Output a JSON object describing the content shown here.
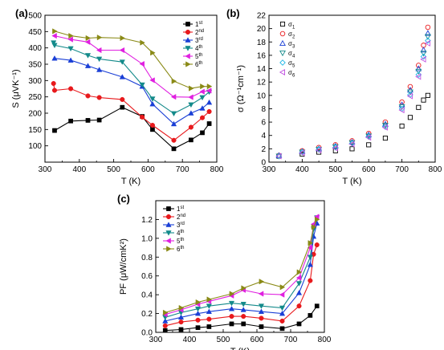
{
  "colors": {
    "s1": "#000000",
    "s2": "#e8191c",
    "s3": "#1a3fd6",
    "s4": "#138a8a",
    "s5": "#e020e0",
    "s6": "#8a8a16"
  },
  "chart_data": [
    {
      "id": "a",
      "type": "line",
      "panel_label": "(a)",
      "xlabel": "T (K)",
      "ylabel": "S (μVK⁻¹)",
      "xlim": [
        300,
        800
      ],
      "ylim": [
        50,
        500
      ],
      "xticks": [
        300,
        400,
        500,
        600,
        700,
        800
      ],
      "yticks": [
        100,
        150,
        200,
        250,
        300,
        350,
        400,
        450,
        500
      ],
      "legend_position": "top-right",
      "series": [
        {
          "name": "1st",
          "label_main": "1",
          "label_sup": "st",
          "marker": "square",
          "color": "#000000",
          "x": [
            328,
            375,
            425,
            458,
            525,
            583,
            613,
            675,
            725,
            758,
            778
          ],
          "y": [
            147,
            176,
            178,
            179,
            218,
            190,
            150,
            91,
            118,
            140,
            168
          ]
        },
        {
          "name": "2nd",
          "label_main": "2",
          "label_sup": "nd",
          "marker": "circle",
          "color": "#e8191c",
          "x": [
            325,
            328,
            375,
            425,
            458,
            525,
            583,
            613,
            675,
            725,
            758,
            778
          ],
          "y": [
            291,
            270,
            275,
            253,
            248,
            242,
            188,
            163,
            117,
            157,
            186,
            205
          ]
        },
        {
          "name": "3rd",
          "label_main": "3",
          "label_sup": "rd",
          "marker": "triangle-up",
          "color": "#1a3fd6",
          "x": [
            328,
            375,
            425,
            458,
            525,
            583,
            613,
            675,
            725,
            758,
            778
          ],
          "y": [
            368,
            362,
            345,
            333,
            311,
            282,
            228,
            167,
            200,
            215,
            233
          ]
        },
        {
          "name": "4th",
          "label_main": "4",
          "label_sup": "th",
          "marker": "triangle-down",
          "color": "#138a8a",
          "x": [
            325,
            328,
            375,
            425,
            458,
            525,
            583,
            613,
            675,
            725,
            758,
            778
          ],
          "y": [
            416,
            408,
            398,
            377,
            366,
            357,
            287,
            244,
            199,
            226,
            248,
            265
          ]
        },
        {
          "name": "5th",
          "label_main": "5",
          "label_sup": "th",
          "marker": "triangle-left",
          "color": "#e020e0",
          "x": [
            328,
            375,
            425,
            458,
            525,
            583,
            613,
            675,
            725,
            758,
            778
          ],
          "y": [
            437,
            426,
            418,
            393,
            393,
            351,
            301,
            250,
            249,
            266,
            269
          ]
        },
        {
          "name": "6th",
          "label_main": "6",
          "label_sup": "th",
          "marker": "triangle-right",
          "color": "#8a8a16",
          "x": [
            328,
            375,
            425,
            458,
            525,
            583,
            613,
            675,
            725,
            758,
            778
          ],
          "y": [
            451,
            437,
            430,
            432,
            430,
            416,
            385,
            298,
            276,
            282,
            282
          ]
        }
      ]
    },
    {
      "id": "b",
      "type": "scatter",
      "panel_label": "(b)",
      "xlabel": "T (K)",
      "ylabel": "σ (Ω⁻¹cm⁻¹)",
      "xlim": [
        300,
        800
      ],
      "ylim": [
        0,
        22
      ],
      "xticks": [
        300,
        400,
        500,
        600,
        700,
        800
      ],
      "yticks": [
        0,
        2,
        4,
        6,
        8,
        10,
        12,
        14,
        16,
        18,
        20,
        22
      ],
      "legend_position": "top-left",
      "series": [
        {
          "name": "σ1",
          "label_main": "σ",
          "label_sub": "1",
          "marker": "open-square",
          "color": "#000000",
          "x": [
            330,
            400,
            450,
            500,
            550,
            600,
            650,
            700,
            725,
            750,
            765,
            778
          ],
          "y": [
            0.9,
            1.2,
            1.5,
            1.7,
            2.0,
            2.6,
            3.6,
            5.4,
            6.7,
            8.2,
            9.3,
            10.0
          ]
        },
        {
          "name": "σ2",
          "label_main": "σ",
          "label_sub": "2",
          "marker": "open-circle",
          "color": "#e8191c",
          "x": [
            330,
            400,
            450,
            500,
            550,
            600,
            650,
            700,
            725,
            750,
            765,
            778
          ],
          "y": [
            1.0,
            1.7,
            2.2,
            2.6,
            3.2,
            4.3,
            6.0,
            9.0,
            11.3,
            14.5,
            17.5,
            20.2
          ]
        },
        {
          "name": "σ3",
          "label_main": "σ",
          "label_sub": "3",
          "marker": "open-triangle-up",
          "color": "#1a3fd6",
          "x": [
            330,
            400,
            450,
            500,
            550,
            600,
            650,
            700,
            725,
            750,
            765,
            778
          ],
          "y": [
            1.0,
            1.6,
            2.0,
            2.4,
            3.0,
            4.1,
            5.7,
            8.6,
            10.8,
            14.0,
            16.8,
            19.3
          ]
        },
        {
          "name": "σ4",
          "label_main": "σ",
          "label_sub": "4",
          "marker": "open-triangle-down",
          "color": "#138a8a",
          "x": [
            330,
            400,
            450,
            500,
            550,
            600,
            650,
            700,
            725,
            750,
            765,
            778
          ],
          "y": [
            0.9,
            1.5,
            1.9,
            2.3,
            2.9,
            3.9,
            5.5,
            8.3,
            10.5,
            13.6,
            16.3,
            18.8
          ]
        },
        {
          "name": "σ5",
          "label_main": "σ",
          "label_sub": "5",
          "marker": "open-diamond",
          "color": "#22b8e8",
          "x": [
            330,
            400,
            450,
            500,
            550,
            600,
            650,
            700,
            725,
            750,
            765,
            778
          ],
          "y": [
            0.9,
            1.5,
            1.9,
            2.2,
            2.8,
            3.8,
            5.3,
            8.0,
            10.1,
            13.1,
            15.8,
            18.2
          ]
        },
        {
          "name": "σ6",
          "label_main": "σ",
          "label_sub": "6",
          "marker": "open-triangle-left",
          "color": "#c050e0",
          "x": [
            330,
            400,
            450,
            500,
            550,
            600,
            650,
            700,
            725,
            750,
            765,
            778
          ],
          "y": [
            0.9,
            1.4,
            1.8,
            2.1,
            2.7,
            3.7,
            5.2,
            7.8,
            9.9,
            12.8,
            15.4,
            17.8
          ]
        }
      ]
    },
    {
      "id": "c",
      "type": "line",
      "panel_label": "(c)",
      "xlabel": "T (K)",
      "ylabel": "PF (μW/cmK²)",
      "xlim": [
        300,
        800
      ],
      "ylim": [
        0.0,
        1.4
      ],
      "xticks": [
        300,
        400,
        500,
        600,
        700,
        800
      ],
      "yticks": [
        0.0,
        0.2,
        0.4,
        0.6,
        0.8,
        1.0,
        1.2
      ],
      "legend_position": "top-left",
      "series": [
        {
          "name": "1st",
          "label_main": "1",
          "label_sup": "st",
          "marker": "square",
          "color": "#000000",
          "x": [
            328,
            375,
            425,
            458,
            525,
            560,
            613,
            675,
            725,
            758,
            778
          ],
          "y": [
            0.02,
            0.03,
            0.05,
            0.06,
            0.09,
            0.09,
            0.06,
            0.04,
            0.09,
            0.18,
            0.28
          ]
        },
        {
          "name": "2nd",
          "label_main": "2",
          "label_sup": "nd",
          "marker": "circle",
          "color": "#e8191c",
          "x": [
            328,
            375,
            425,
            458,
            525,
            560,
            613,
            675,
            725,
            758,
            768,
            778
          ],
          "y": [
            0.07,
            0.11,
            0.13,
            0.14,
            0.17,
            0.17,
            0.15,
            0.12,
            0.28,
            0.55,
            0.83,
            0.93
          ]
        },
        {
          "name": "3rd",
          "label_main": "3",
          "label_sup": "rd",
          "marker": "triangle-up",
          "color": "#1a3fd6",
          "x": [
            328,
            375,
            425,
            458,
            525,
            560,
            613,
            675,
            725,
            758,
            768,
            778
          ],
          "y": [
            0.12,
            0.16,
            0.2,
            0.22,
            0.25,
            0.24,
            0.22,
            0.2,
            0.42,
            0.72,
            1.02,
            1.16
          ]
        },
        {
          "name": "4th",
          "label_main": "4",
          "label_sup": "th",
          "marker": "triangle-down",
          "color": "#138a8a",
          "x": [
            328,
            375,
            425,
            458,
            525,
            560,
            613,
            675,
            725,
            758,
            768,
            778
          ],
          "y": [
            0.16,
            0.21,
            0.25,
            0.28,
            0.31,
            0.3,
            0.28,
            0.26,
            0.52,
            0.8,
            1.1,
            1.22
          ]
        },
        {
          "name": "5th",
          "label_main": "5",
          "label_sup": "th",
          "marker": "triangle-left",
          "color": "#e020e0",
          "x": [
            328,
            375,
            425,
            458,
            525,
            560,
            613,
            675,
            725,
            758,
            768,
            778
          ],
          "y": [
            0.19,
            0.24,
            0.3,
            0.33,
            0.39,
            0.45,
            0.41,
            0.4,
            0.58,
            0.9,
            1.15,
            1.23
          ]
        },
        {
          "name": "6th",
          "label_main": "6",
          "label_sup": "th",
          "marker": "triangle-right",
          "color": "#8a8a16",
          "x": [
            328,
            375,
            425,
            458,
            525,
            560,
            613,
            675,
            725,
            758,
            768,
            778
          ],
          "y": [
            0.21,
            0.26,
            0.32,
            0.35,
            0.41,
            0.47,
            0.54,
            0.48,
            0.64,
            0.95,
            1.12,
            1.2
          ]
        }
      ]
    }
  ]
}
